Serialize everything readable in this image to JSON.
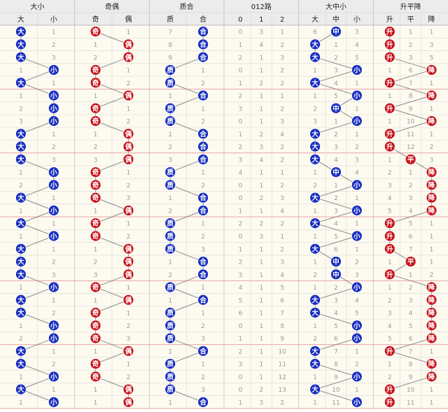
{
  "colors": {
    "blue": "#1a2fbf",
    "red": "#c8141c",
    "header_bg": "#ececec",
    "row_bg": "#fdfbf0",
    "grid_line": "#d8d8d8",
    "group_divider": "#e8a4a8",
    "line": "#8a8a8a",
    "miss_text": "#9a9a9a"
  },
  "chart_data": {
    "type": "table",
    "groups": [
      {
        "title": "大小",
        "columns": [
          "大",
          "小"
        ]
      },
      {
        "title": "奇偶",
        "columns": [
          "奇",
          "偶"
        ]
      },
      {
        "title": "质合",
        "columns": [
          "质",
          "合"
        ]
      },
      {
        "title": "012路",
        "columns": [
          "0",
          "1",
          "2"
        ]
      },
      {
        "title": "大中小",
        "columns": [
          "大",
          "中",
          "小"
        ]
      },
      {
        "title": "升平降",
        "columns": [
          "升",
          "平",
          "降"
        ]
      }
    ],
    "hit_colors": [
      [
        "blue",
        "blue"
      ],
      [
        "red",
        "red"
      ],
      [
        "blue",
        "blue"
      ],
      [
        "red",
        "red",
        "red"
      ],
      [
        "blue",
        "blue",
        "blue"
      ],
      [
        "red",
        "red",
        "red"
      ]
    ],
    "rows": [
      [
        [
          "大",
          "1"
        ],
        [
          "奇",
          "1"
        ],
        [
          "7",
          "合"
        ],
        [
          "0",
          "3",
          "1"
        ],
        [
          "6",
          "中",
          "3"
        ],
        [
          "升",
          "1",
          "1"
        ]
      ],
      [
        [
          "大",
          "2"
        ],
        [
          "1",
          "偶"
        ],
        [
          "8",
          "合"
        ],
        [
          "1",
          "4",
          "2"
        ],
        [
          "大",
          "1",
          "4"
        ],
        [
          "升",
          "2",
          "3"
        ]
      ],
      [
        [
          "大",
          "3"
        ],
        [
          "2",
          "偶"
        ],
        [
          "9",
          "合"
        ],
        [
          "2",
          "1",
          "3"
        ],
        [
          "大",
          "2",
          "5"
        ],
        [
          "升",
          "3",
          "5"
        ]
      ],
      [
        [
          "1",
          "小"
        ],
        [
          "奇",
          "1"
        ],
        [
          "质",
          "1"
        ],
        [
          "0",
          "1",
          "2"
        ],
        [
          "1",
          "3",
          "小"
        ],
        [
          "1",
          "6",
          "降"
        ]
      ],
      [
        [
          "大",
          "1"
        ],
        [
          "奇",
          "2"
        ],
        [
          "质",
          "2"
        ],
        [
          "1",
          "2",
          "2"
        ],
        [
          "大",
          "4",
          "1"
        ],
        [
          "升",
          "7",
          "1"
        ]
      ],
      [
        [
          "1",
          "小"
        ],
        [
          "1",
          "偶"
        ],
        [
          "1",
          "合"
        ],
        [
          "2",
          "1",
          "1"
        ],
        [
          "1",
          "5",
          "小"
        ],
        [
          "1",
          "8",
          "降"
        ]
      ],
      [
        [
          "2",
          "小"
        ],
        [
          "奇",
          "1"
        ],
        [
          "质",
          "1"
        ],
        [
          "3",
          "1",
          "2"
        ],
        [
          "2",
          "中",
          "1"
        ],
        [
          "升",
          "9",
          "1"
        ]
      ],
      [
        [
          "3",
          "小"
        ],
        [
          "奇",
          "2"
        ],
        [
          "质",
          "2"
        ],
        [
          "0",
          "1",
          "3"
        ],
        [
          "3",
          "1",
          "小"
        ],
        [
          "1",
          "10",
          "降"
        ]
      ],
      [
        [
          "大",
          "1"
        ],
        [
          "1",
          "偶"
        ],
        [
          "1",
          "合"
        ],
        [
          "1",
          "2",
          "4"
        ],
        [
          "大",
          "2",
          "1"
        ],
        [
          "升",
          "11",
          "1"
        ]
      ],
      [
        [
          "大",
          "2"
        ],
        [
          "2",
          "偶"
        ],
        [
          "2",
          "合"
        ],
        [
          "2",
          "3",
          "2"
        ],
        [
          "大",
          "3",
          "2"
        ],
        [
          "升",
          "12",
          "2"
        ]
      ],
      [
        [
          "大",
          "3"
        ],
        [
          "3",
          "偶"
        ],
        [
          "3",
          "合"
        ],
        [
          "3",
          "4",
          "2"
        ],
        [
          "大",
          "4",
          "3"
        ],
        [
          "1",
          "平",
          "3"
        ]
      ],
      [
        [
          "1",
          "小"
        ],
        [
          "奇",
          "1"
        ],
        [
          "质",
          "1"
        ],
        [
          "4",
          "1",
          "1"
        ],
        [
          "1",
          "中",
          "4"
        ],
        [
          "2",
          "1",
          "降"
        ]
      ],
      [
        [
          "2",
          "小"
        ],
        [
          "奇",
          "2"
        ],
        [
          "质",
          "2"
        ],
        [
          "0",
          "1",
          "2"
        ],
        [
          "2",
          "1",
          "小"
        ],
        [
          "3",
          "2",
          "降"
        ]
      ],
      [
        [
          "大",
          "1"
        ],
        [
          "奇",
          "3"
        ],
        [
          "1",
          "合"
        ],
        [
          "0",
          "2",
          "3"
        ],
        [
          "大",
          "2",
          "1"
        ],
        [
          "4",
          "3",
          "降"
        ]
      ],
      [
        [
          "1",
          "小"
        ],
        [
          "1",
          "偶"
        ],
        [
          "2",
          "合"
        ],
        [
          "1",
          "1",
          "4"
        ],
        [
          "1",
          "3",
          "小"
        ],
        [
          "5",
          "4",
          "降"
        ]
      ],
      [
        [
          "大",
          "1"
        ],
        [
          "奇",
          "1"
        ],
        [
          "质",
          "1"
        ],
        [
          "2",
          "2",
          "2"
        ],
        [
          "大",
          "4",
          "1"
        ],
        [
          "升",
          "5",
          "1"
        ]
      ],
      [
        [
          "1",
          "小"
        ],
        [
          "奇",
          "2"
        ],
        [
          "质",
          "2"
        ],
        [
          "0",
          "3",
          "1"
        ],
        [
          "1",
          "5",
          "小"
        ],
        [
          "升",
          "6",
          "1"
        ]
      ],
      [
        [
          "大",
          "1"
        ],
        [
          "1",
          "偶"
        ],
        [
          "质",
          "3"
        ],
        [
          "1",
          "1",
          "2"
        ],
        [
          "大",
          "6",
          "1"
        ],
        [
          "升",
          "7",
          "1"
        ]
      ],
      [
        [
          "大",
          "2"
        ],
        [
          "2",
          "偶"
        ],
        [
          "1",
          "合"
        ],
        [
          "2",
          "1",
          "3"
        ],
        [
          "1",
          "中",
          "2"
        ],
        [
          "1",
          "平",
          "1"
        ]
      ],
      [
        [
          "大",
          "3"
        ],
        [
          "3",
          "偶"
        ],
        [
          "2",
          "合"
        ],
        [
          "3",
          "1",
          "4"
        ],
        [
          "2",
          "中",
          "3"
        ],
        [
          "升",
          "1",
          "2"
        ]
      ],
      [
        [
          "1",
          "小"
        ],
        [
          "奇",
          "1"
        ],
        [
          "质",
          "1"
        ],
        [
          "4",
          "1",
          "5"
        ],
        [
          "1",
          "2",
          "小"
        ],
        [
          "1",
          "2",
          "降"
        ]
      ],
      [
        [
          "大",
          "1"
        ],
        [
          "1",
          "偶"
        ],
        [
          "1",
          "合"
        ],
        [
          "5",
          "1",
          "6"
        ],
        [
          "大",
          "3",
          "4"
        ],
        [
          "2",
          "3",
          "降"
        ]
      ],
      [
        [
          "大",
          "2"
        ],
        [
          "奇",
          "1"
        ],
        [
          "质",
          "1"
        ],
        [
          "6",
          "1",
          "7"
        ],
        [
          "大",
          "4",
          "5"
        ],
        [
          "3",
          "4",
          "降"
        ]
      ],
      [
        [
          "1",
          "小"
        ],
        [
          "奇",
          "2"
        ],
        [
          "质",
          "2"
        ],
        [
          "0",
          "1",
          "8"
        ],
        [
          "1",
          "5",
          "小"
        ],
        [
          "4",
          "5",
          "降"
        ]
      ],
      [
        [
          "2",
          "小"
        ],
        [
          "奇",
          "3"
        ],
        [
          "质",
          "3"
        ],
        [
          "1",
          "1",
          "9"
        ],
        [
          "2",
          "6",
          "小"
        ],
        [
          "5",
          "6",
          "降"
        ]
      ],
      [
        [
          "大",
          "1"
        ],
        [
          "1",
          "偶"
        ],
        [
          "1",
          "合"
        ],
        [
          "2",
          "1",
          "10"
        ],
        [
          "大",
          "7",
          "1"
        ],
        [
          "升",
          "7",
          "1"
        ]
      ],
      [
        [
          "大",
          "2"
        ],
        [
          "奇",
          "1"
        ],
        [
          "质",
          "1"
        ],
        [
          "3",
          "1",
          "11"
        ],
        [
          "大",
          "8",
          "2"
        ],
        [
          "1",
          "8",
          "降"
        ]
      ],
      [
        [
          "1",
          "小"
        ],
        [
          "奇",
          "2"
        ],
        [
          "质",
          "2"
        ],
        [
          "0",
          "1",
          "12"
        ],
        [
          "1",
          "9",
          "小"
        ],
        [
          "2",
          "9",
          "降"
        ]
      ],
      [
        [
          "大",
          "1"
        ],
        [
          "1",
          "偶"
        ],
        [
          "质",
          "3"
        ],
        [
          "0",
          "2",
          "13"
        ],
        [
          "大",
          "10",
          "1"
        ],
        [
          "升",
          "10",
          "1"
        ]
      ],
      [
        [
          "1",
          "小"
        ],
        [
          "1",
          "偶"
        ],
        [
          "1",
          "合"
        ],
        [
          "1",
          "3",
          "2"
        ],
        [
          "1",
          "11",
          "小"
        ],
        [
          "升",
          "11",
          "1"
        ]
      ]
    ]
  }
}
